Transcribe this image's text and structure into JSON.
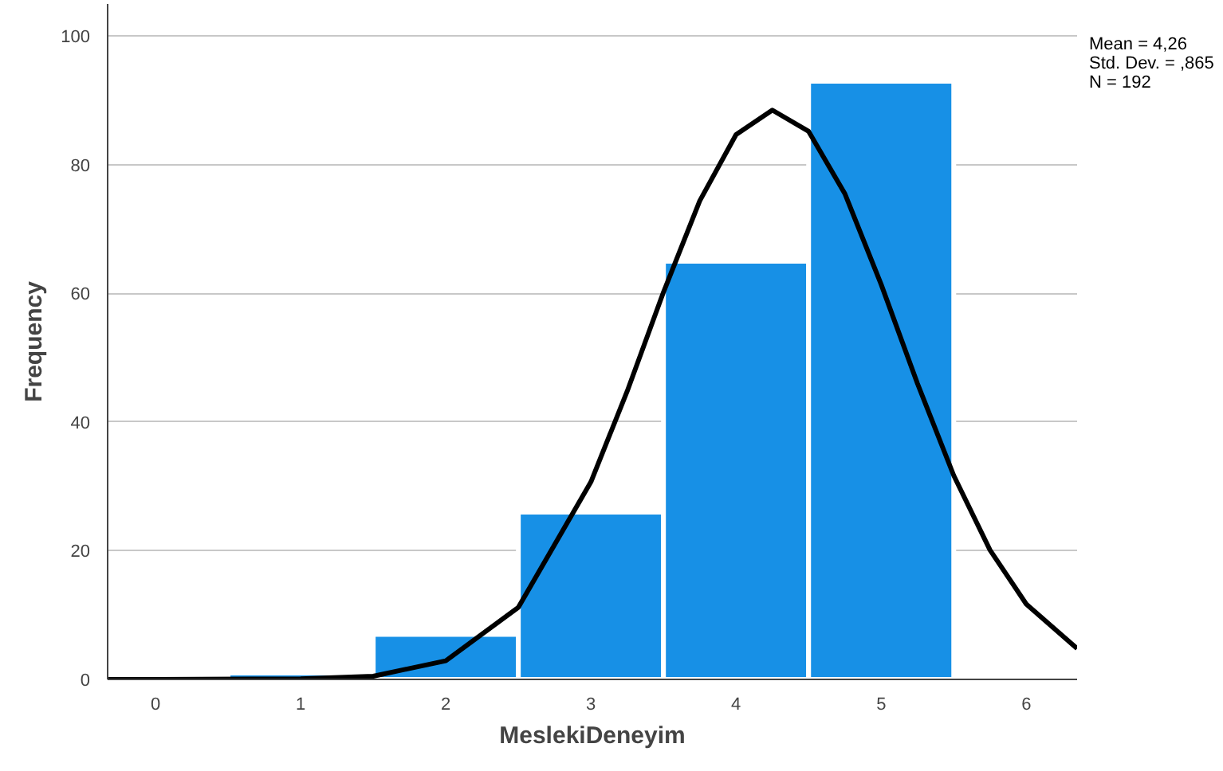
{
  "chart_data": {
    "type": "histogram",
    "xlabel": "MeslekiDeneyim",
    "ylabel": "Frequency",
    "bins": [
      0.5,
      1.5,
      2.5,
      3.5,
      4.5,
      5.5
    ],
    "values": [
      1,
      7,
      26,
      65,
      93
    ],
    "color": "#1790e6",
    "series": [
      {
        "type": "line",
        "color": "#000000",
        "x": [
          -0.33,
          0,
          1,
          1.5,
          2,
          2.5,
          3,
          3.25,
          3.5,
          3.75,
          4,
          4.25,
          4.5,
          4.75,
          5,
          5.25,
          5.5,
          5.75,
          6,
          6.35
        ],
        "values": [
          0,
          0,
          0.1,
          0.5,
          2.9,
          11.2,
          30.7,
          44.8,
          60.2,
          74.4,
          84.7,
          88.5,
          85.2,
          75.5,
          61.4,
          46,
          31.7,
          20.1,
          11.7,
          4.8
        ]
      }
    ],
    "xlim": [
      -0.33,
      6.35
    ],
    "xticks": [
      0,
      1,
      2,
      3,
      4,
      5,
      6
    ],
    "ylim": [
      0,
      105
    ],
    "yticks": [
      0,
      20,
      40,
      60,
      80,
      100
    ],
    "grid": "y",
    "annotations": [
      "Mean = 4,26",
      "Std. Dev. = ,865",
      "N = 192"
    ]
  }
}
